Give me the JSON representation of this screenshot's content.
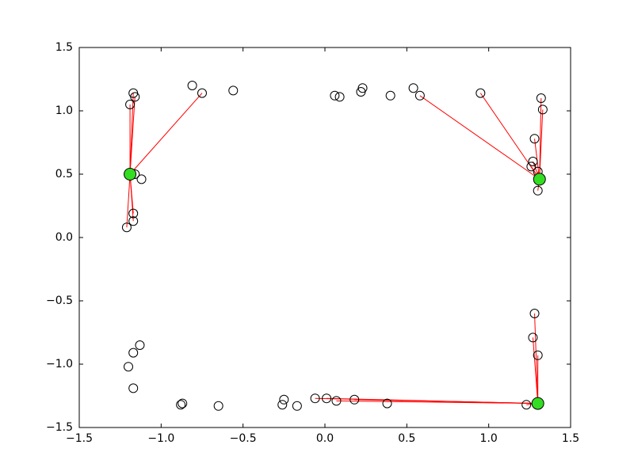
{
  "chart_data": {
    "type": "scatter",
    "xlim": [
      -1.5,
      1.5
    ],
    "ylim": [
      -1.5,
      1.5
    ],
    "xticks": [
      {
        "value": -1.5,
        "label": "−1.5"
      },
      {
        "value": -1.0,
        "label": "−1.0"
      },
      {
        "value": -0.5,
        "label": "−0.5"
      },
      {
        "value": 0.0,
        "label": "0.0"
      },
      {
        "value": 0.5,
        "label": "0.5"
      },
      {
        "value": 1.0,
        "label": "1.0"
      },
      {
        "value": 1.5,
        "label": "1.5"
      }
    ],
    "yticks": [
      {
        "value": -1.5,
        "label": "−1.5"
      },
      {
        "value": -1.0,
        "label": "−1.0"
      },
      {
        "value": -0.5,
        "label": "−0.5"
      },
      {
        "value": 0.0,
        "label": "0.0"
      },
      {
        "value": 0.5,
        "label": "0.5"
      },
      {
        "value": 1.0,
        "label": "1.0"
      },
      {
        "value": 1.5,
        "label": "1.5"
      }
    ],
    "point_color": "#000000",
    "center_color": "#33dd22",
    "link_color": "#ff0000",
    "groups": [
      {
        "center": {
          "x": -1.19,
          "y": 0.5
        },
        "linked": {
          "x": [
            -1.17,
            -1.16,
            -1.19,
            -0.75,
            -1.16,
            -1.17,
            -1.17,
            -1.21
          ],
          "y": [
            1.14,
            1.11,
            1.05,
            1.14,
            0.5,
            0.19,
            0.13,
            0.08
          ]
        }
      },
      {
        "center": {
          "x": 1.31,
          "y": 0.46
        },
        "linked": {
          "x": [
            0.58,
            0.95,
            1.32,
            1.33,
            1.28,
            1.27,
            1.26,
            1.3,
            1.3
          ],
          "y": [
            1.12,
            1.14,
            1.1,
            1.01,
            0.78,
            0.6,
            0.56,
            0.52,
            0.37
          ]
        }
      },
      {
        "center": {
          "x": 1.3,
          "y": -1.31
        },
        "linked": {
          "x": [
            1.28,
            1.27,
            1.3,
            1.23,
            -0.06,
            0.01,
            0.07,
            0.18
          ],
          "y": [
            -0.6,
            -0.79,
            -0.93,
            -1.32,
            -1.27,
            -1.27,
            -1.29,
            -1.28
          ]
        }
      }
    ],
    "unlinked": {
      "x": [
        -0.81,
        -0.56,
        -1.12,
        0.06,
        0.09,
        0.22,
        0.23,
        0.4,
        0.54,
        0.38,
        -0.25,
        -0.26,
        -0.17,
        -0.65,
        -0.87,
        -0.88,
        -1.17,
        -1.2,
        -1.17,
        -1.13
      ],
      "y": [
        1.2,
        1.16,
        0.46,
        1.12,
        1.11,
        1.15,
        1.18,
        1.12,
        1.18,
        -1.31,
        -1.28,
        -1.32,
        -1.33,
        -1.33,
        -1.31,
        -1.32,
        -1.19,
        -1.02,
        -0.91,
        -0.85
      ]
    }
  }
}
